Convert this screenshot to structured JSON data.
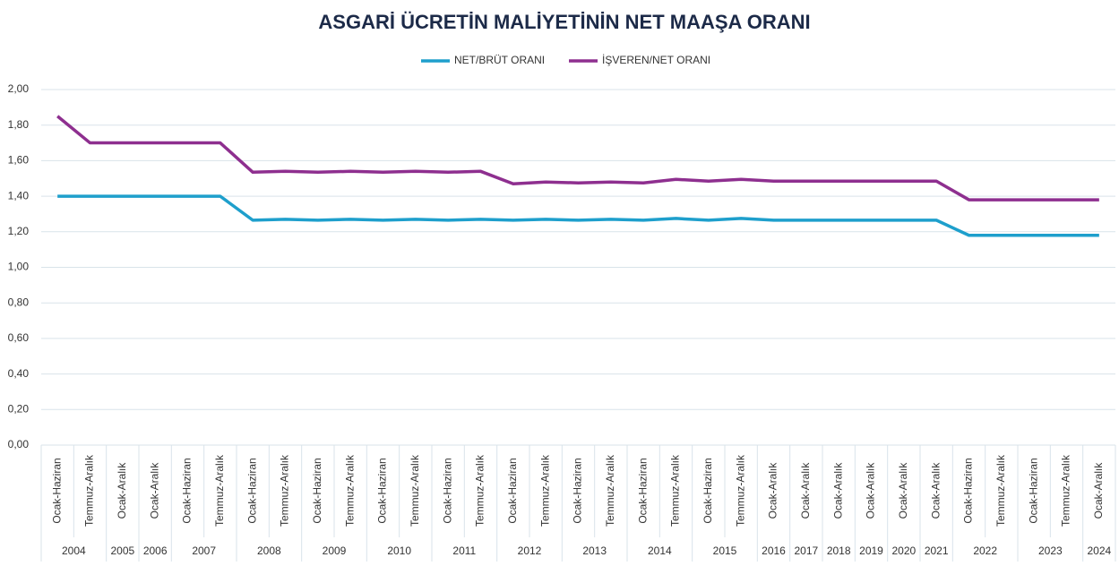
{
  "chart_data": {
    "type": "line",
    "title": "ASGARİ ÜCRETİN MALİYETİNİN NET MAAŞA ORANI",
    "category_groups": [
      {
        "label": "2004",
        "categories": [
          "Ocak-Haziran",
          "Temmuz-Aralık"
        ]
      },
      {
        "label": "2005",
        "categories": [
          "Ocak-Aralık"
        ]
      },
      {
        "label": "2006",
        "categories": [
          "Ocak-Aralık"
        ]
      },
      {
        "label": "2007",
        "categories": [
          "Ocak-Haziran",
          "Temmuz-Aralık"
        ]
      },
      {
        "label": "2008",
        "categories": [
          "Ocak-Haziran",
          "Temmuz-Aralık"
        ]
      },
      {
        "label": "2009",
        "categories": [
          "Ocak-Haziran",
          "Temmuz-Aralık"
        ]
      },
      {
        "label": "2010",
        "categories": [
          "Ocak-Haziran",
          "Temmuz-Aralık"
        ]
      },
      {
        "label": "2011",
        "categories": [
          "Ocak-Haziran",
          "Temmuz-Aralık"
        ]
      },
      {
        "label": "2012",
        "categories": [
          "Ocak-Haziran",
          "Temmuz-Aralık"
        ]
      },
      {
        "label": "2013",
        "categories": [
          "Ocak-Haziran",
          "Temmuz-Aralık"
        ]
      },
      {
        "label": "2014",
        "categories": [
          "Ocak-Haziran",
          "Temmuz-Aralık"
        ]
      },
      {
        "label": "2015",
        "categories": [
          "Ocak-Haziran",
          "Temmuz-Aralık"
        ]
      },
      {
        "label": "2016",
        "categories": [
          "Ocak-Aralık"
        ]
      },
      {
        "label": "2017",
        "categories": [
          "Ocak-Aralık"
        ]
      },
      {
        "label": "2018",
        "categories": [
          "Ocak-Aralık"
        ]
      },
      {
        "label": "2019",
        "categories": [
          "Ocak-Aralık"
        ]
      },
      {
        "label": "2020",
        "categories": [
          "Ocak-Aralık"
        ]
      },
      {
        "label": "2021",
        "categories": [
          "Ocak-Aralık"
        ]
      },
      {
        "label": "2022",
        "categories": [
          "Ocak-Haziran",
          "Temmuz-Aralık"
        ]
      },
      {
        "label": "2023",
        "categories": [
          "Ocak-Haziran",
          "Temmuz-Aralık"
        ]
      },
      {
        "label": "2024",
        "categories": [
          "Ocak-Aralık"
        ]
      }
    ],
    "series": [
      {
        "name": "NET/BRÜT ORANI",
        "color": "#1e9fcc",
        "values": [
          1.4,
          1.4,
          1.4,
          1.4,
          1.4,
          1.4,
          1.265,
          1.27,
          1.265,
          1.27,
          1.265,
          1.27,
          1.265,
          1.27,
          1.265,
          1.27,
          1.265,
          1.27,
          1.265,
          1.275,
          1.265,
          1.275,
          1.265,
          1.265,
          1.265,
          1.265,
          1.265,
          1.265,
          1.18,
          1.18,
          1.18,
          1.18,
          1.18
        ]
      },
      {
        "name": "İŞVEREN/NET ORANI",
        "color": "#8e2f8f",
        "values": [
          1.85,
          1.7,
          1.7,
          1.7,
          1.7,
          1.7,
          1.535,
          1.54,
          1.535,
          1.54,
          1.535,
          1.54,
          1.535,
          1.54,
          1.47,
          1.48,
          1.475,
          1.48,
          1.475,
          1.495,
          1.485,
          1.495,
          1.485,
          1.485,
          1.485,
          1.485,
          1.485,
          1.485,
          1.38,
          1.38,
          1.38,
          1.38,
          1.38
        ]
      }
    ],
    "ylim": [
      0,
      2
    ],
    "yticks": [
      {
        "value": 0,
        "label": "0,00"
      },
      {
        "value": 0.2,
        "label": "0,20"
      },
      {
        "value": 0.4,
        "label": "0,40"
      },
      {
        "value": 0.6,
        "label": "0,60"
      },
      {
        "value": 0.8,
        "label": "0,80"
      },
      {
        "value": 1,
        "label": "1,00"
      },
      {
        "value": 1.2,
        "label": "1,20"
      },
      {
        "value": 1.4,
        "label": "1,40"
      },
      {
        "value": 1.6,
        "label": "1,60"
      },
      {
        "value": 1.8,
        "label": "1,80"
      },
      {
        "value": 2,
        "label": "2,00"
      }
    ],
    "grid": true,
    "legend": "top"
  }
}
